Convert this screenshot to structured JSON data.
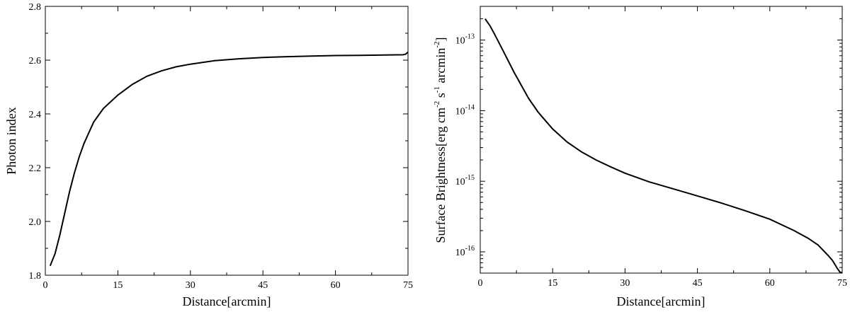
{
  "chart_data": [
    {
      "type": "line",
      "xlabel": "Distance[arcmin]",
      "ylabel": "Photon index",
      "xlim": [
        0,
        75
      ],
      "ylim": [
        1.8,
        2.8
      ],
      "xticks": [
        0,
        15,
        30,
        45,
        60,
        75
      ],
      "xtick_labels": [
        "0",
        "15",
        "30",
        "45",
        "60",
        "75"
      ],
      "yticks": [
        1.8,
        2.0,
        2.2,
        2.4,
        2.6,
        2.8
      ],
      "ytick_labels": [
        "1.8",
        "2.0",
        "2.2",
        "2.4",
        "2.6",
        "2.8"
      ],
      "series": [
        {
          "x": [
            1,
            2,
            3,
            4,
            5,
            6,
            7,
            8,
            9,
            10,
            12,
            15,
            18,
            21,
            24,
            27,
            30,
            35,
            40,
            45,
            50,
            55,
            60,
            65,
            70,
            74,
            74.5,
            75
          ],
          "y": [
            1.835,
            1.88,
            1.95,
            2.03,
            2.11,
            2.18,
            2.24,
            2.29,
            2.33,
            2.37,
            2.42,
            2.47,
            2.51,
            2.54,
            2.56,
            2.575,
            2.585,
            2.598,
            2.605,
            2.61,
            2.613,
            2.615,
            2.617,
            2.618,
            2.619,
            2.62,
            2.622,
            2.63
          ]
        }
      ]
    },
    {
      "type": "line",
      "xlabel": "Distance[arcmin]",
      "ylabel_parts": [
        "Surface Brightness[erg cm",
        "-2",
        " s",
        "-1",
        " arcmin",
        "-2",
        "]"
      ],
      "xlim": [
        0,
        75
      ],
      "ylim": [
        5e-17,
        3e-13
      ],
      "yscale": "log",
      "xticks": [
        0,
        15,
        30,
        45,
        60,
        75
      ],
      "xtick_labels": [
        "0",
        "15",
        "30",
        "45",
        "60",
        "75"
      ],
      "yticks": [
        1e-16,
        1e-15,
        1e-14,
        1e-13
      ],
      "ytick_labels": [
        {
          "base": "10",
          "exp": "-16"
        },
        {
          "base": "10",
          "exp": "-15"
        },
        {
          "base": "10",
          "exp": "-14"
        },
        {
          "base": "10",
          "exp": "-13"
        }
      ],
      "series": [
        {
          "x": [
            1,
            2,
            3,
            5,
            7,
            10,
            12,
            15,
            18,
            21,
            24,
            27,
            30,
            35,
            40,
            45,
            50,
            55,
            60,
            65,
            68,
            70,
            72,
            73,
            74,
            74.5,
            75
          ],
          "y": [
            2e-13,
            1.6e-13,
            1.2e-13,
            6.5e-14,
            3.5e-14,
            1.5e-14,
            9.5e-15,
            5.5e-15,
            3.6e-15,
            2.6e-15,
            2e-15,
            1.6e-15,
            1.3e-15,
            9.8e-16,
            7.8e-16,
            6.2e-16,
            4.9e-16,
            3.8e-16,
            2.9e-16,
            2e-16,
            1.55e-16,
            1.25e-16,
            9e-17,
            7.5e-17,
            5.8e-17,
            5.2e-17,
            5e-17
          ]
        }
      ]
    }
  ]
}
